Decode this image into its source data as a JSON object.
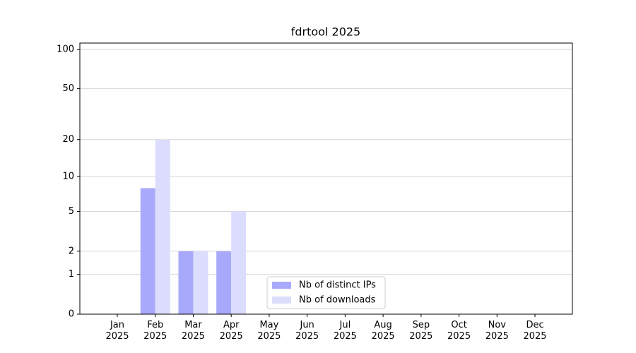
{
  "chart_data": {
    "type": "bar",
    "title": "fdrtool 2025",
    "categories": [
      "Jan\n2025",
      "Feb\n2025",
      "Mar\n2025",
      "Apr\n2025",
      "May\n2025",
      "Jun\n2025",
      "Jul\n2025",
      "Aug\n2025",
      "Sep\n2025",
      "Oct\n2025",
      "Nov\n2025",
      "Dec\n2025"
    ],
    "series": [
      {
        "name": "Nb of distinct IPs",
        "color": "#a9a9fb",
        "values": [
          0,
          8,
          2,
          2,
          0,
          0,
          0,
          0,
          0,
          0,
          0,
          0
        ]
      },
      {
        "name": "Nb of downloads",
        "color": "#dcdcfd",
        "values": [
          0,
          20,
          2,
          5,
          0,
          0,
          0,
          0,
          0,
          0,
          0,
          0
        ]
      }
    ],
    "y_scale": "log1p",
    "ylim": [
      0,
      112
    ],
    "yticks": [
      0,
      1,
      2,
      5,
      10,
      20,
      50,
      100
    ],
    "grid": true,
    "legend": "lower center"
  }
}
